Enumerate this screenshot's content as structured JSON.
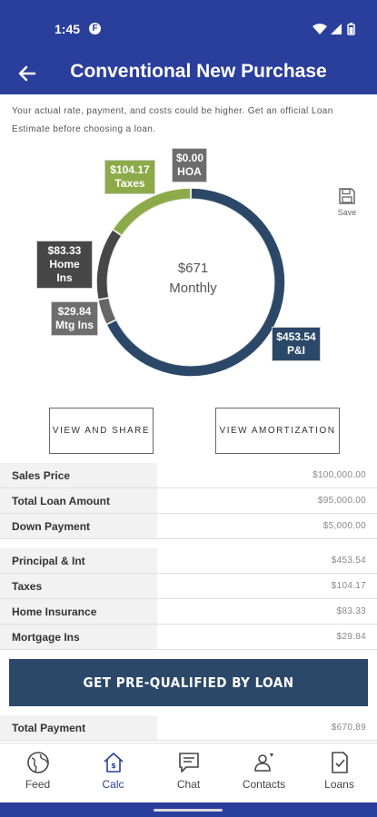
{
  "status_bar": {
    "time": "1:45",
    "app_icon_letter": "F"
  },
  "app_bar": {
    "title": "Conventional New Purchase"
  },
  "disclaimer": "Your actual rate, payment, and costs could be higher. Get an official Loan Estimate before choosing a loan.",
  "chart_data": {
    "type": "pie",
    "center_value": "$671",
    "center_label": "Monthly",
    "slices": [
      {
        "name": "P&I",
        "value": 453.54,
        "label_value": "$453.54",
        "color": "#2b4868"
      },
      {
        "name": "Mtg Ins",
        "value": 29.84,
        "label_value": "$29.84",
        "color": "#666666"
      },
      {
        "name": "Home Ins",
        "value": 83.33,
        "label_value": "$83.33",
        "color": "#474747"
      },
      {
        "name": "Taxes",
        "value": 104.17,
        "label_value": "$104.17",
        "color": "#8cab48"
      },
      {
        "name": "HOA",
        "value": 0.0,
        "label_value": "$0.00",
        "color": "#6c6c6c"
      }
    ]
  },
  "save_label": "Save",
  "buttons": {
    "view_share": "VIEW AND SHARE",
    "view_amortization": "VIEW AMORTIZATION",
    "cta": "GET PRE-QUALIFIED BY LOAN"
  },
  "loan_table": [
    {
      "label": "Sales Price",
      "value": "$100,000.00"
    },
    {
      "label": "Total Loan Amount",
      "value": "$95,000.00"
    },
    {
      "label": "Down Payment",
      "value": "$5,000.00"
    }
  ],
  "payment_table": [
    {
      "label": "Principal & Int",
      "value": "$453.54"
    },
    {
      "label": "Taxes",
      "value": "$104.17"
    },
    {
      "label": "Home Insurance",
      "value": "$83.33"
    },
    {
      "label": "Mortgage Ins",
      "value": "$29.84"
    }
  ],
  "total": {
    "label": "Total Payment",
    "value": "$670.89"
  },
  "nav": [
    {
      "label": "Feed",
      "icon": "globe-icon"
    },
    {
      "label": "Calc",
      "icon": "home-calc-icon",
      "active": true
    },
    {
      "label": "Chat",
      "icon": "chat-icon"
    },
    {
      "label": "Contacts",
      "icon": "contacts-icon"
    },
    {
      "label": "Loans",
      "icon": "document-check-icon"
    }
  ],
  "colors": {
    "primary": "#2a3e9c",
    "cta": "#2b4868",
    "accent_green": "#8cab48"
  }
}
